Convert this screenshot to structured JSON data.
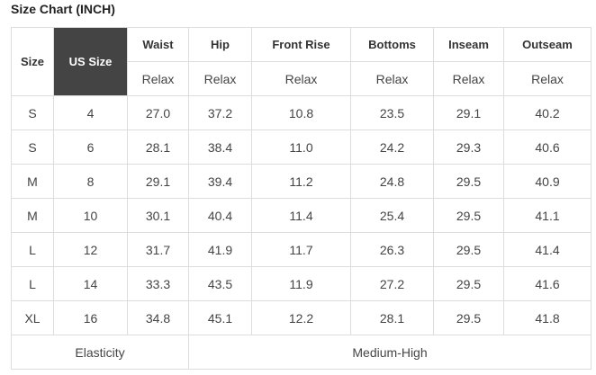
{
  "header": {
    "title": "Size Chart (INCH)"
  },
  "table": {
    "columns": [
      "Size",
      "US Size",
      "Waist",
      "Hip",
      "Front Rise",
      "Bottoms",
      "Inseam",
      "Outseam"
    ],
    "subheader": [
      "Relax",
      "Relax",
      "Relax",
      "Relax",
      "Relax",
      "Relax"
    ],
    "rows": [
      [
        "S",
        "4",
        "27.0",
        "37.2",
        "10.8",
        "23.5",
        "29.1",
        "40.2"
      ],
      [
        "S",
        "6",
        "28.1",
        "38.4",
        "11.0",
        "24.2",
        "29.3",
        "40.6"
      ],
      [
        "M",
        "8",
        "29.1",
        "39.4",
        "11.2",
        "24.8",
        "29.5",
        "40.9"
      ],
      [
        "M",
        "10",
        "30.1",
        "40.4",
        "11.4",
        "25.4",
        "29.5",
        "41.1"
      ],
      [
        "L",
        "12",
        "31.7",
        "41.9",
        "11.7",
        "26.3",
        "29.5",
        "41.4"
      ],
      [
        "L",
        "14",
        "33.3",
        "43.5",
        "11.9",
        "27.2",
        "29.5",
        "41.6"
      ],
      [
        "XL",
        "16",
        "34.8",
        "45.1",
        "12.2",
        "28.1",
        "29.5",
        "41.8"
      ]
    ],
    "footer": [
      "Elasticity",
      "Medium-High"
    ]
  }
}
